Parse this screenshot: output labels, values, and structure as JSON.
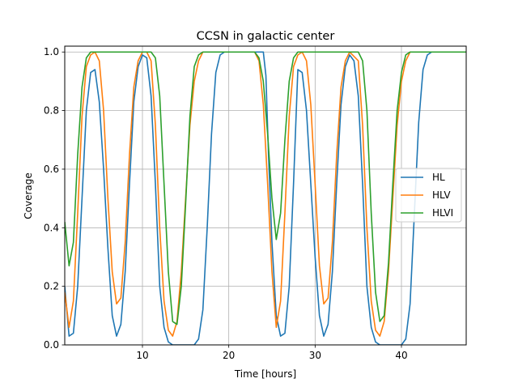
{
  "chart_data": {
    "type": "line",
    "title": "CCSN in galactic center",
    "xlabel": "Time [hours]",
    "ylabel": "Coverage",
    "xlim": [
      1,
      47.5
    ],
    "ylim": [
      0,
      1.02
    ],
    "xticks": [
      10,
      20,
      30,
      40
    ],
    "xtick_labels": [
      "10",
      "20",
      "30",
      "40"
    ],
    "yticks": [
      0,
      0.2,
      0.4,
      0.6,
      0.8,
      1.0
    ],
    "ytick_labels": [
      "0.0",
      "0.2",
      "0.4",
      "0.6",
      "0.8",
      "1.0"
    ],
    "grid": true,
    "legend_position": "center-right",
    "series": [
      {
        "name": "HL",
        "color": "#1f77b4",
        "points": [
          [
            1.0,
            0.2
          ],
          [
            1.5,
            0.03
          ],
          [
            2.0,
            0.04
          ],
          [
            2.5,
            0.2
          ],
          [
            3.0,
            0.5
          ],
          [
            3.5,
            0.8
          ],
          [
            4.0,
            0.93
          ],
          [
            4.5,
            0.94
          ],
          [
            5.0,
            0.83
          ],
          [
            5.5,
            0.6
          ],
          [
            6.0,
            0.33
          ],
          [
            6.5,
            0.1
          ],
          [
            7.0,
            0.03
          ],
          [
            7.5,
            0.07
          ],
          [
            8.0,
            0.25
          ],
          [
            8.5,
            0.55
          ],
          [
            9.0,
            0.83
          ],
          [
            9.5,
            0.95
          ],
          [
            10.0,
            0.99
          ],
          [
            10.5,
            0.98
          ],
          [
            11.0,
            0.85
          ],
          [
            11.5,
            0.55
          ],
          [
            12.0,
            0.2
          ],
          [
            12.5,
            0.06
          ],
          [
            13.0,
            0.01
          ],
          [
            13.5,
            0.0
          ],
          [
            14.0,
            0.0
          ],
          [
            16.0,
            0.0
          ],
          [
            16.5,
            0.02
          ],
          [
            17.0,
            0.12
          ],
          [
            17.5,
            0.4
          ],
          [
            18.0,
            0.72
          ],
          [
            18.5,
            0.93
          ],
          [
            19.0,
            0.99
          ],
          [
            19.5,
            1.0
          ],
          [
            24.0,
            1.0
          ],
          [
            24.3,
            0.92
          ],
          [
            24.6,
            0.65
          ],
          [
            25.0,
            0.35
          ],
          [
            25.5,
            0.1
          ],
          [
            26.0,
            0.03
          ],
          [
            26.5,
            0.04
          ],
          [
            27.0,
            0.2
          ],
          [
            27.5,
            0.55
          ],
          [
            28.0,
            0.94
          ],
          [
            28.5,
            0.93
          ],
          [
            29.0,
            0.8
          ],
          [
            29.5,
            0.55
          ],
          [
            30.0,
            0.3
          ],
          [
            30.5,
            0.1
          ],
          [
            31.0,
            0.03
          ],
          [
            31.5,
            0.07
          ],
          [
            32.0,
            0.25
          ],
          [
            32.5,
            0.55
          ],
          [
            33.0,
            0.82
          ],
          [
            33.5,
            0.95
          ],
          [
            34.0,
            0.99
          ],
          [
            34.5,
            0.97
          ],
          [
            35.0,
            0.85
          ],
          [
            35.5,
            0.55
          ],
          [
            36.0,
            0.2
          ],
          [
            36.5,
            0.06
          ],
          [
            37.0,
            0.01
          ],
          [
            37.5,
            0.0
          ],
          [
            40.0,
            0.0
          ],
          [
            40.5,
            0.02
          ],
          [
            41.0,
            0.14
          ],
          [
            41.5,
            0.45
          ],
          [
            42.0,
            0.76
          ],
          [
            42.5,
            0.94
          ],
          [
            43.0,
            0.99
          ],
          [
            43.5,
            1.0
          ],
          [
            47.5,
            1.0
          ]
        ]
      },
      {
        "name": "HLV",
        "color": "#ff7f0e",
        "points": [
          [
            1.0,
            0.18
          ],
          [
            1.5,
            0.06
          ],
          [
            2.0,
            0.15
          ],
          [
            2.5,
            0.45
          ],
          [
            3.0,
            0.78
          ],
          [
            3.5,
            0.95
          ],
          [
            4.0,
            0.99
          ],
          [
            4.5,
            1.0
          ],
          [
            5.0,
            0.97
          ],
          [
            5.5,
            0.8
          ],
          [
            6.0,
            0.5
          ],
          [
            6.5,
            0.25
          ],
          [
            7.0,
            0.14
          ],
          [
            7.5,
            0.16
          ],
          [
            8.0,
            0.35
          ],
          [
            8.5,
            0.65
          ],
          [
            9.0,
            0.88
          ],
          [
            9.5,
            0.97
          ],
          [
            10.0,
            1.0
          ],
          [
            10.5,
            1.0
          ],
          [
            11.0,
            0.97
          ],
          [
            11.5,
            0.75
          ],
          [
            12.0,
            0.4
          ],
          [
            12.5,
            0.15
          ],
          [
            13.0,
            0.05
          ],
          [
            13.5,
            0.03
          ],
          [
            14.0,
            0.08
          ],
          [
            14.5,
            0.25
          ],
          [
            15.0,
            0.5
          ],
          [
            15.5,
            0.75
          ],
          [
            16.0,
            0.9
          ],
          [
            16.5,
            0.97
          ],
          [
            17.0,
            1.0
          ],
          [
            23.0,
            1.0
          ],
          [
            23.5,
            0.97
          ],
          [
            24.0,
            0.82
          ],
          [
            24.5,
            0.55
          ],
          [
            25.0,
            0.25
          ],
          [
            25.5,
            0.06
          ],
          [
            26.0,
            0.15
          ],
          [
            26.5,
            0.45
          ],
          [
            27.0,
            0.78
          ],
          [
            27.5,
            0.95
          ],
          [
            28.0,
            0.99
          ],
          [
            28.5,
            1.0
          ],
          [
            29.0,
            0.97
          ],
          [
            29.5,
            0.82
          ],
          [
            30.0,
            0.55
          ],
          [
            30.5,
            0.27
          ],
          [
            31.0,
            0.14
          ],
          [
            31.5,
            0.16
          ],
          [
            32.0,
            0.35
          ],
          [
            32.5,
            0.65
          ],
          [
            33.0,
            0.88
          ],
          [
            33.5,
            0.97
          ],
          [
            34.0,
            1.0
          ],
          [
            35.0,
            0.97
          ],
          [
            35.5,
            0.75
          ],
          [
            36.0,
            0.4
          ],
          [
            36.5,
            0.15
          ],
          [
            37.0,
            0.05
          ],
          [
            37.5,
            0.03
          ],
          [
            38.0,
            0.08
          ],
          [
            38.5,
            0.25
          ],
          [
            39.0,
            0.5
          ],
          [
            39.5,
            0.75
          ],
          [
            40.0,
            0.9
          ],
          [
            40.5,
            0.97
          ],
          [
            41.0,
            1.0
          ],
          [
            47.5,
            1.0
          ]
        ]
      },
      {
        "name": "HLVI",
        "color": "#2ca02c",
        "points": [
          [
            1.0,
            0.42
          ],
          [
            1.5,
            0.27
          ],
          [
            2.0,
            0.35
          ],
          [
            2.5,
            0.65
          ],
          [
            3.0,
            0.88
          ],
          [
            3.5,
            0.98
          ],
          [
            4.0,
            1.0
          ],
          [
            11.0,
            1.0
          ],
          [
            11.5,
            0.98
          ],
          [
            12.0,
            0.85
          ],
          [
            12.5,
            0.55
          ],
          [
            13.0,
            0.25
          ],
          [
            13.5,
            0.08
          ],
          [
            14.0,
            0.07
          ],
          [
            14.5,
            0.2
          ],
          [
            15.0,
            0.48
          ],
          [
            15.5,
            0.78
          ],
          [
            16.0,
            0.95
          ],
          [
            16.5,
            0.99
          ],
          [
            17.0,
            1.0
          ],
          [
            23.0,
            1.0
          ],
          [
            23.5,
            0.98
          ],
          [
            24.0,
            0.9
          ],
          [
            24.5,
            0.72
          ],
          [
            25.0,
            0.5
          ],
          [
            25.5,
            0.36
          ],
          [
            26.0,
            0.45
          ],
          [
            26.5,
            0.7
          ],
          [
            27.0,
            0.9
          ],
          [
            27.5,
            0.98
          ],
          [
            28.0,
            1.0
          ],
          [
            35.0,
            1.0
          ],
          [
            35.5,
            0.97
          ],
          [
            36.0,
            0.8
          ],
          [
            36.5,
            0.45
          ],
          [
            37.0,
            0.18
          ],
          [
            37.5,
            0.08
          ],
          [
            38.0,
            0.1
          ],
          [
            38.5,
            0.28
          ],
          [
            39.0,
            0.55
          ],
          [
            39.5,
            0.8
          ],
          [
            40.0,
            0.93
          ],
          [
            40.5,
            0.99
          ],
          [
            41.0,
            1.0
          ],
          [
            47.5,
            1.0
          ]
        ]
      }
    ]
  }
}
